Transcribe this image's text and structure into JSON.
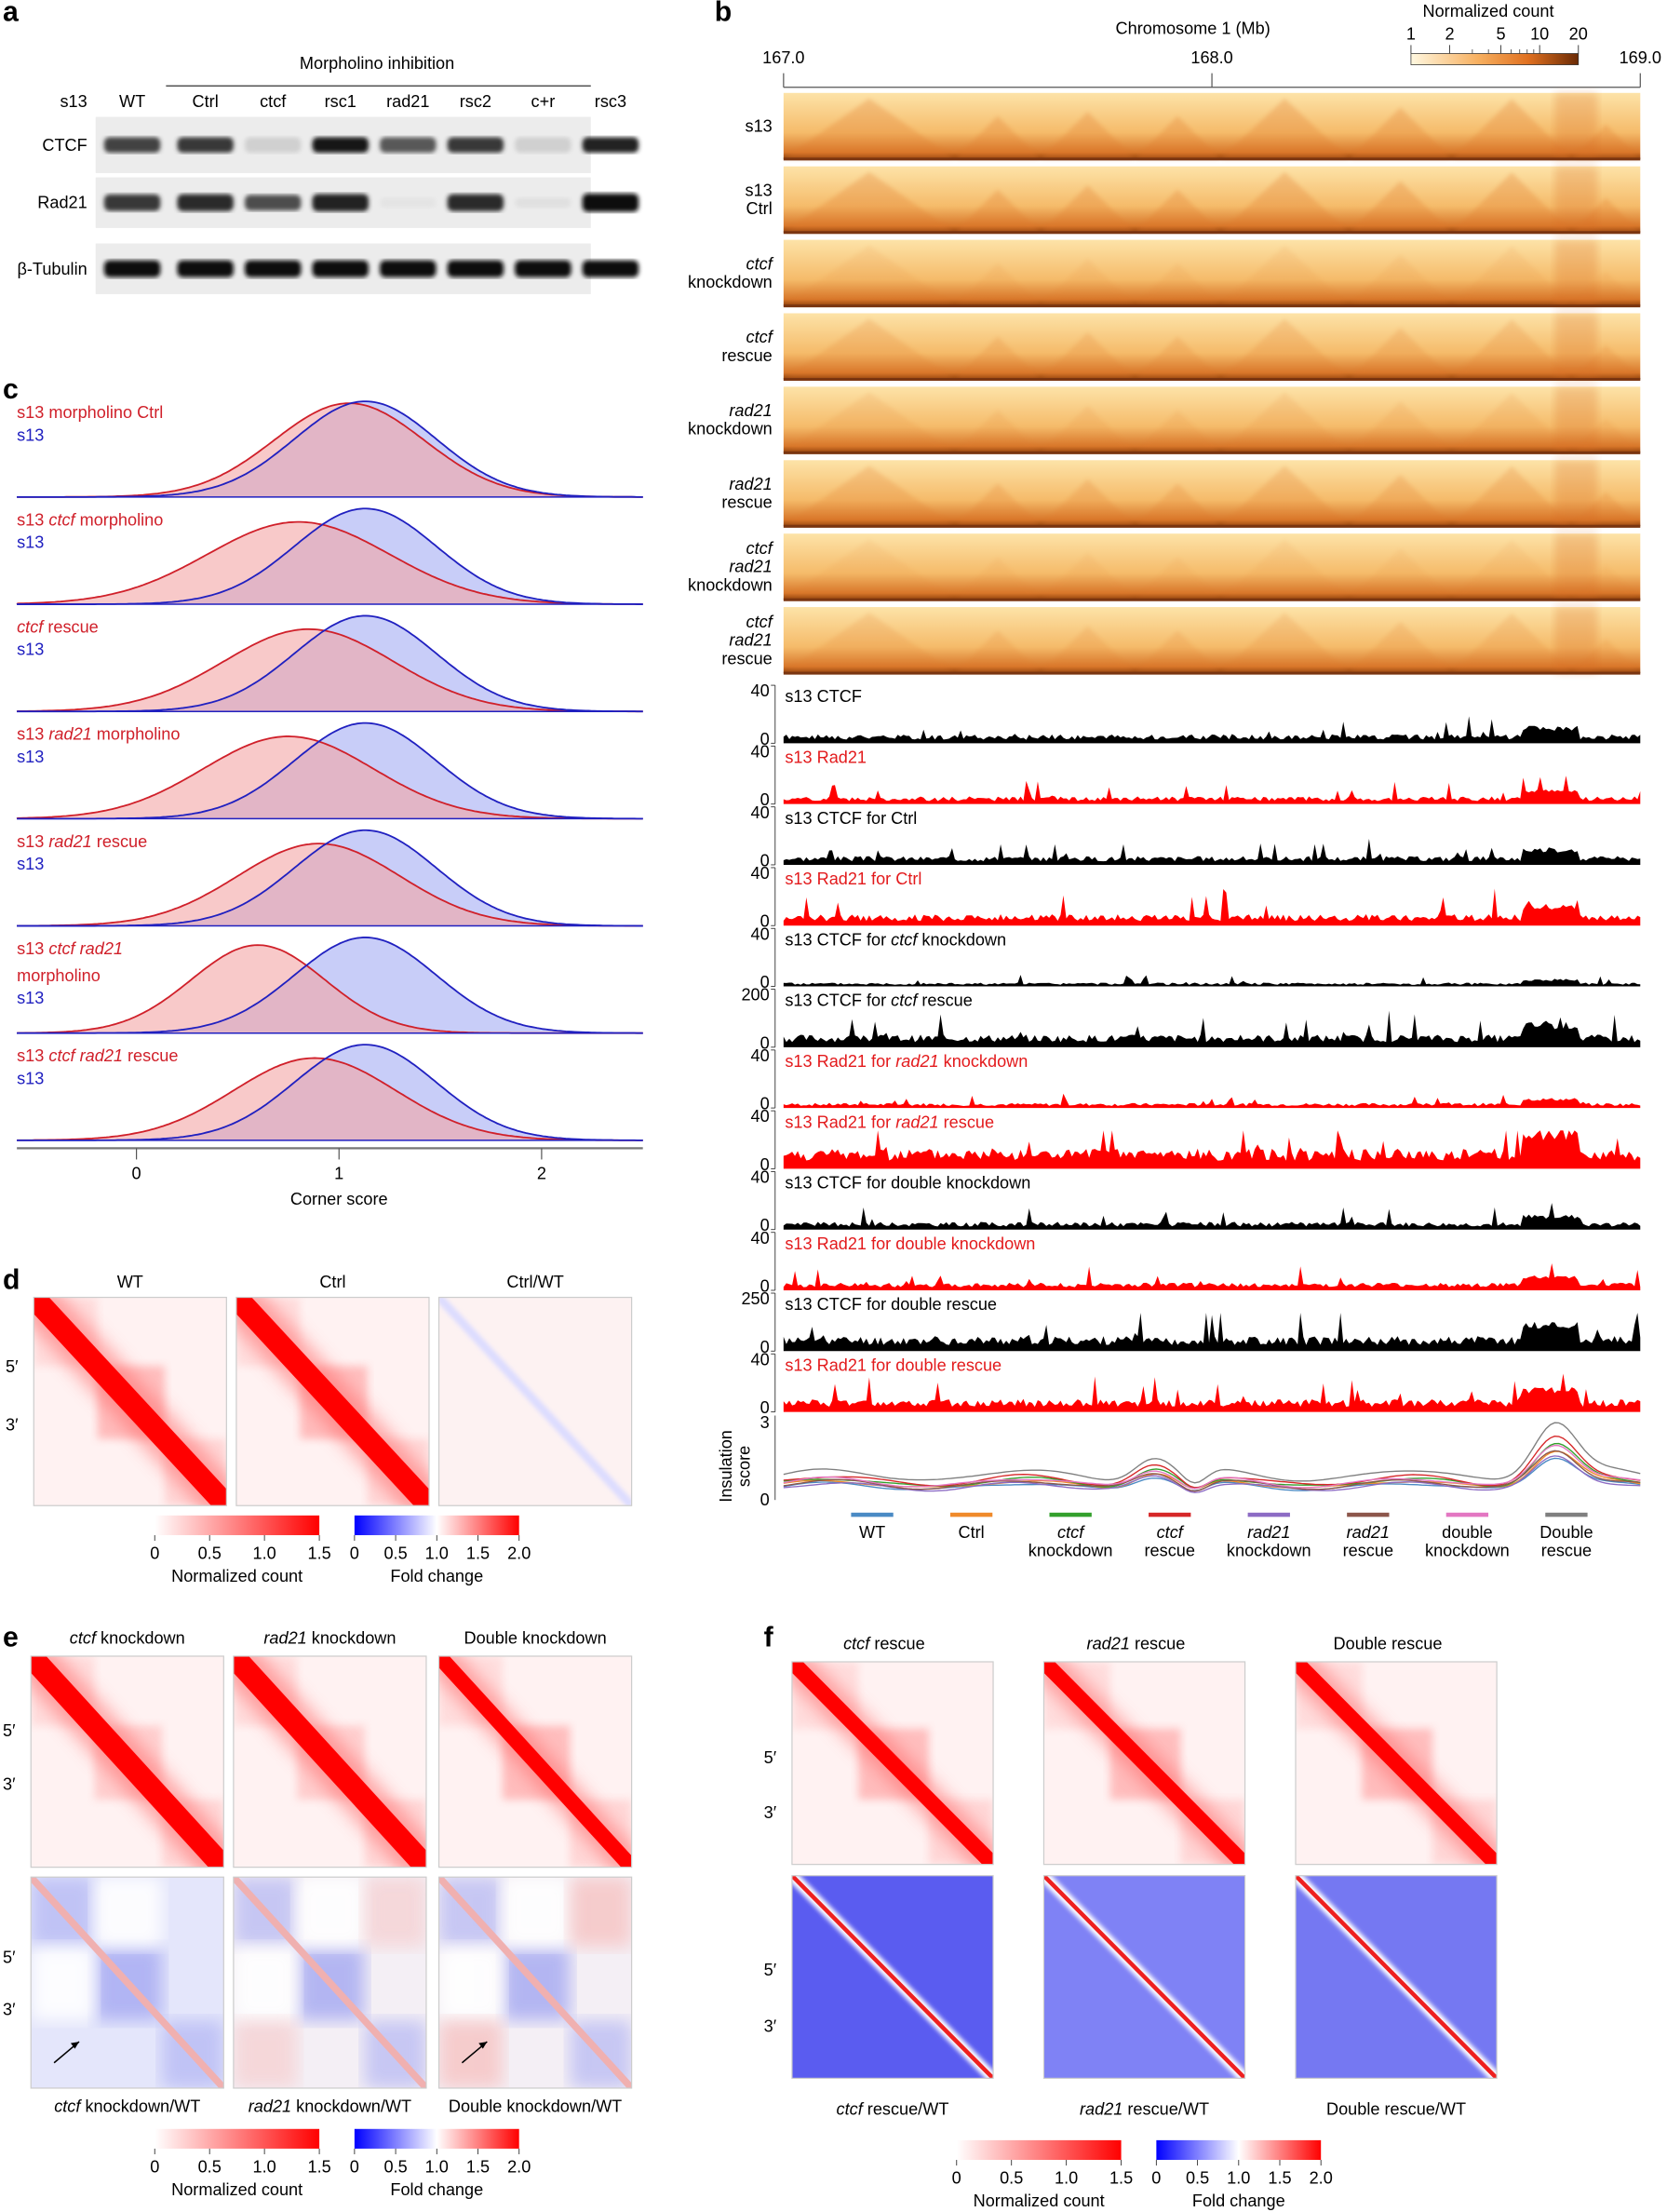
{
  "panel_labels": {
    "a": "a",
    "b": "b",
    "c": "c",
    "d": "d",
    "e": "e",
    "f": "f"
  },
  "panel_a": {
    "group_label": "Morpholino inhibition",
    "row_header": "s13",
    "lanes": [
      "WT",
      "Ctrl",
      "ctcf",
      "rsc1",
      "rad21",
      "rsc2",
      "c+r",
      "rsc3"
    ],
    "blots": [
      {
        "label": "CTCF",
        "intensity": [
          0.75,
          0.8,
          0.12,
          0.95,
          0.65,
          0.8,
          0.12,
          0.9
        ]
      },
      {
        "label": "Rad21",
        "intensity": [
          0.8,
          0.85,
          0.7,
          0.9,
          0.03,
          0.85,
          0.05,
          1.0
        ]
      },
      {
        "label": "β-Tubulin",
        "intensity": [
          1,
          1,
          1,
          1,
          1,
          1,
          1,
          1
        ]
      }
    ]
  },
  "panel_b": {
    "axis_title": "Chromosome 1 (Mb)",
    "axis_ticks": [
      "167.0",
      "168.0",
      "169.0"
    ],
    "colorbar_title": "Normalized count",
    "colorbar_ticks": [
      "1",
      "2",
      "5",
      "10",
      "20"
    ],
    "heatmap_rows": [
      {
        "lines": [
          "s13"
        ],
        "italic": [
          false
        ]
      },
      {
        "lines": [
          "s13",
          "Ctrl"
        ],
        "italic": [
          false,
          false
        ]
      },
      {
        "lines": [
          "ctcf",
          "knockdown"
        ],
        "italic": [
          true,
          false
        ]
      },
      {
        "lines": [
          "ctcf",
          "rescue"
        ],
        "italic": [
          true,
          false
        ]
      },
      {
        "lines": [
          "rad21",
          "knockdown"
        ],
        "italic": [
          true,
          false
        ]
      },
      {
        "lines": [
          "rad21",
          "rescue"
        ],
        "italic": [
          true,
          false
        ]
      },
      {
        "lines": [
          "ctcf",
          "rad21",
          "knockdown"
        ],
        "italic": [
          true,
          true,
          false
        ]
      },
      {
        "lines": [
          "ctcf",
          "rad21",
          "rescue"
        ],
        "italic": [
          true,
          true,
          false
        ]
      }
    ],
    "tracks": [
      {
        "pre": "s13 CTCF",
        "ital": "",
        "post": "",
        "color": "#000000",
        "ymax": "40",
        "ymin": "0",
        "scale": 0.35,
        "seed": 1
      },
      {
        "pre": "s13 Rad21",
        "ital": "",
        "post": "",
        "color": "#ff0000",
        "ymax": "40",
        "ymin": "0",
        "scale": 0.3,
        "seed": 2
      },
      {
        "pre": "s13 CTCF for Ctrl",
        "ital": "",
        "post": "",
        "color": "#000000",
        "ymax": "40",
        "ymin": "0",
        "scale": 0.35,
        "seed": 3
      },
      {
        "pre": "s13 Rad21 for Ctrl",
        "ital": "",
        "post": "",
        "color": "#ff0000",
        "ymax": "40",
        "ymin": "0",
        "scale": 0.45,
        "seed": 4
      },
      {
        "pre": "s13 CTCF for ",
        "ital": "ctcf",
        "post": " knockdown",
        "color": "#000000",
        "ymax": "40",
        "ymin": "0",
        "scale": 0.15,
        "seed": 5
      },
      {
        "pre": "s13 CTCF for ",
        "ital": "ctcf",
        "post": " rescue",
        "color": "#000000",
        "ymax": "200",
        "ymin": "0",
        "scale": 0.5,
        "seed": 6
      },
      {
        "pre": "s13 Rad21 for ",
        "ital": "rad21",
        "post": " knockdown",
        "color": "#ff0000",
        "ymax": "40",
        "ymin": "0",
        "scale": 0.2,
        "seed": 7
      },
      {
        "pre": "s13 Rad21 for ",
        "ital": "rad21",
        "post": " rescue",
        "color": "#ff0000",
        "ymax": "40",
        "ymin": "0",
        "scale": 0.8,
        "seed": 8
      },
      {
        "pre": "s13 CTCF for double knockdown",
        "ital": "",
        "post": "",
        "color": "#000000",
        "ymax": "40",
        "ymin": "0",
        "scale": 0.3,
        "seed": 9
      },
      {
        "pre": "s13 Rad21 for double knockdown",
        "ital": "",
        "post": "",
        "color": "#ff0000",
        "ymax": "40",
        "ymin": "0",
        "scale": 0.3,
        "seed": 10
      },
      {
        "pre": "s13 CTCF for double rescue",
        "ital": "",
        "post": "",
        "color": "#000000",
        "ymax": "250",
        "ymin": "0",
        "scale": 0.6,
        "seed": 11
      },
      {
        "pre": "s13 Rad21 for double rescue",
        "ital": "",
        "post": "",
        "color": "#ff0000",
        "ymax": "40",
        "ymin": "0",
        "scale": 0.5,
        "seed": 12
      }
    ],
    "insulation": {
      "ylabel": [
        "Insulation",
        "score"
      ],
      "ymax": "3",
      "ymin": "0",
      "legend": [
        {
          "l1": "WT",
          "l2": "",
          "ital": false,
          "color": "#4a8ac4"
        },
        {
          "l1": "Ctrl",
          "l2": "",
          "ital": false,
          "color": "#f08a2a"
        },
        {
          "l1": "ctcf",
          "l2": "knockdown",
          "ital": true,
          "color": "#33a02c"
        },
        {
          "l1": "ctcf",
          "l2": "rescue",
          "ital": true,
          "color": "#d62728"
        },
        {
          "l1": "rad21",
          "l2": "knockdown",
          "ital": true,
          "color": "#8c6bc4"
        },
        {
          "l1": "rad21",
          "l2": "rescue",
          "ital": true,
          "color": "#8c564b"
        },
        {
          "l1": "double",
          "l2": "knockdown",
          "ital": false,
          "color": "#e377c2"
        },
        {
          "l1": "Double",
          "l2": "rescue",
          "ital": false,
          "color": "#7f7f7f"
        }
      ]
    }
  },
  "chart_data": {
    "type": "area",
    "title": "Corner score distributions (panel c)",
    "xlabel": "Corner score",
    "xlim": [
      -0.6,
      2.5
    ],
    "xticks": [
      "0",
      "1",
      "2"
    ],
    "series_pairs": [
      {
        "red_label_parts": [
          [
            "s13 morpholino Ctrl",
            false
          ]
        ],
        "blue_label": "s13",
        "red_peak": 1.05,
        "red_sd": 0.37,
        "blue_peak": 1.13,
        "blue_sd": 0.35
      },
      {
        "red_label_parts": [
          [
            "s13 ",
            false
          ],
          [
            "ctcf",
            true
          ],
          [
            " morpholino",
            false
          ]
        ],
        "blue_label": "s13",
        "red_peak": 0.8,
        "red_sd": 0.45,
        "blue_peak": 1.13,
        "blue_sd": 0.35
      },
      {
        "red_label_parts": [
          [
            "ctcf",
            true
          ],
          [
            " rescue",
            false
          ]
        ],
        "blue_label": "s13",
        "red_peak": 0.85,
        "red_sd": 0.42,
        "blue_peak": 1.13,
        "blue_sd": 0.35
      },
      {
        "red_label_parts": [
          [
            "s13 ",
            false
          ],
          [
            "rad21",
            true
          ],
          [
            " morpholino",
            false
          ]
        ],
        "blue_label": "s13",
        "red_peak": 0.75,
        "red_sd": 0.42,
        "blue_peak": 1.13,
        "blue_sd": 0.35
      },
      {
        "red_label_parts": [
          [
            "s13 ",
            false
          ],
          [
            "rad21",
            true
          ],
          [
            " rescue",
            false
          ]
        ],
        "blue_label": "s13",
        "red_peak": 0.9,
        "red_sd": 0.4,
        "blue_peak": 1.13,
        "blue_sd": 0.35
      },
      {
        "red_label_parts": [
          [
            "s13 ",
            false
          ],
          [
            "ctcf rad21",
            true
          ]
        ],
        "red_label_line2": "morpholino",
        "blue_label": "s13",
        "red_peak": 0.6,
        "red_sd": 0.33,
        "blue_peak": 1.13,
        "blue_sd": 0.35
      },
      {
        "red_label_parts": [
          [
            "s13 ",
            false
          ],
          [
            "ctcf rad21",
            true
          ],
          [
            " rescue",
            false
          ]
        ],
        "blue_label": "s13",
        "red_peak": 0.88,
        "red_sd": 0.4,
        "blue_peak": 1.13,
        "blue_sd": 0.35
      }
    ]
  },
  "panel_d": {
    "titles": [
      "WT",
      "Ctrl",
      "Ctrl/WT"
    ],
    "y_labels": [
      "5′",
      "3′"
    ]
  },
  "panel_e": {
    "titles": [
      [
        "ctcf",
        " knockdown"
      ],
      [
        "rad21",
        " knockdown"
      ],
      [
        "",
        "Double knockdown"
      ]
    ],
    "bottom_titles": [
      [
        "ctcf",
        " knockdown/WT"
      ],
      [
        "rad21",
        " knockdown/WT"
      ],
      [
        "",
        "Double knockdown/WT"
      ]
    ],
    "y_labels": [
      "5′",
      "3′"
    ]
  },
  "panel_f": {
    "titles": [
      [
        "ctcf",
        " rescue"
      ],
      [
        "rad21",
        " rescue"
      ],
      [
        "",
        "Double rescue"
      ]
    ],
    "bottom_titles": [
      [
        "ctcf",
        " rescue/WT"
      ],
      [
        "rad21",
        " rescue/WT"
      ],
      [
        "",
        "Double rescue/WT"
      ]
    ],
    "y_labels": [
      "5′",
      "3′"
    ]
  },
  "colorbars": {
    "normalized": {
      "title": "Normalized count",
      "ticks": [
        "0",
        "0.5",
        "1.0",
        "1.5"
      ]
    },
    "fold": {
      "title": "Fold change",
      "ticks": [
        "0",
        "0.5",
        "1.0",
        "1.5",
        "2.0"
      ]
    }
  }
}
